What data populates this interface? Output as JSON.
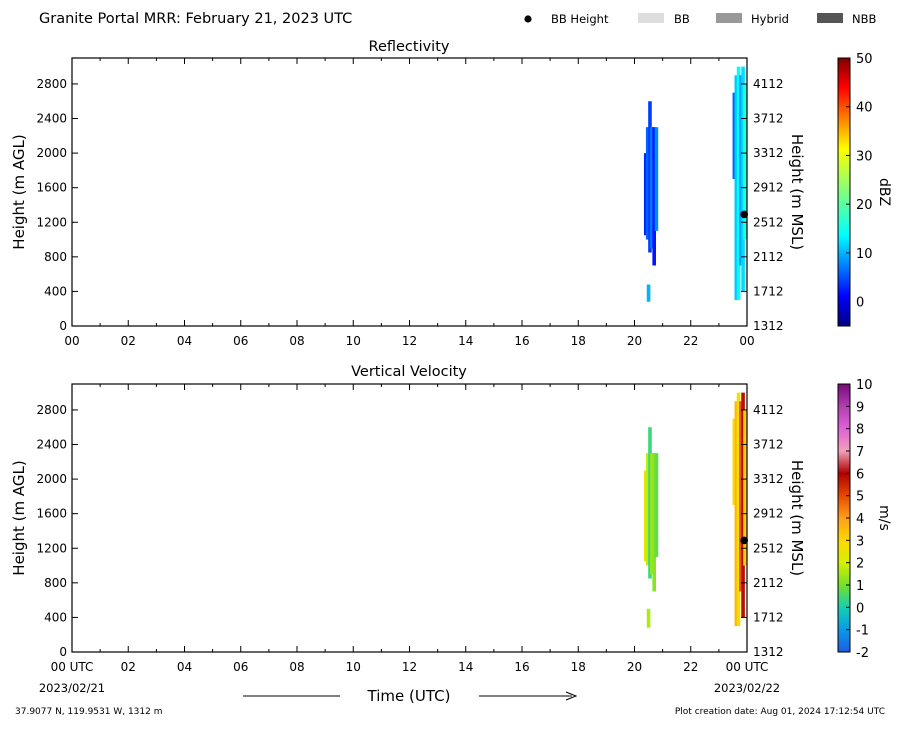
{
  "header": {
    "title": "Granite Portal MRR:  February 21, 2023 UTC",
    "legend": [
      {
        "label": "BB Height",
        "marker": "dot",
        "color": "#000000"
      },
      {
        "label": "BB",
        "marker": "rect",
        "color": "#dddddd"
      },
      {
        "label": "Hybrid",
        "marker": "rect",
        "color": "#999999"
      },
      {
        "label": "NBB",
        "marker": "rect",
        "color": "#555555"
      }
    ]
  },
  "footer": {
    "location": "37.9077 N, 119.9531 W, 1312 m",
    "created": "Plot creation date: Aug 01, 2024 17:12:54 UTC",
    "xlabel": "Time (UTC)",
    "start_date": "2023/02/21",
    "end_date": "2023/02/22"
  },
  "chart_data": [
    {
      "type": "heatmap",
      "title": "Reflectivity",
      "ylabel": "Height (m AGL)",
      "y2label": "Height (m MSL)",
      "x_ticks": [
        "00",
        "02",
        "04",
        "06",
        "08",
        "10",
        "12",
        "14",
        "16",
        "18",
        "20",
        "22",
        "00"
      ],
      "y_ticks": [
        0,
        400,
        800,
        1200,
        1600,
        2000,
        2400,
        2800
      ],
      "y2_ticks": [
        1312,
        1712,
        2112,
        2512,
        2912,
        3312,
        3712,
        4112
      ],
      "ylim": [
        0,
        3100
      ],
      "xlim_hours": [
        0,
        24
      ],
      "colorbar": {
        "label": "dBZ",
        "min": -5,
        "max": 50,
        "ticks": [
          0,
          10,
          20,
          30,
          40,
          50
        ]
      },
      "bb_height": [
        {
          "hour": 23.9,
          "height": 1290
        }
      ],
      "echo_columns": [
        {
          "hour": 20.4,
          "bottom": 1050,
          "top": 2000,
          "value": 3
        },
        {
          "hour": 20.47,
          "bottom": 1000,
          "top": 2300,
          "value": 6
        },
        {
          "hour": 20.5,
          "bottom": 280,
          "top": 480,
          "value": 10
        },
        {
          "hour": 20.55,
          "bottom": 850,
          "top": 2600,
          "value": 4
        },
        {
          "hour": 20.62,
          "bottom": 900,
          "top": 2300,
          "value": 7
        },
        {
          "hour": 20.7,
          "bottom": 700,
          "top": 2300,
          "value": 2
        },
        {
          "hour": 20.78,
          "bottom": 1100,
          "top": 2300,
          "value": 8
        },
        {
          "hour": 23.55,
          "bottom": 1700,
          "top": 2700,
          "value": 6
        },
        {
          "hour": 23.62,
          "bottom": 300,
          "top": 2900,
          "value": 11
        },
        {
          "hour": 23.7,
          "bottom": 300,
          "top": 3000,
          "value": 14
        },
        {
          "hour": 23.78,
          "bottom": 700,
          "top": 2900,
          "value": 9
        },
        {
          "hour": 23.86,
          "bottom": 400,
          "top": 3000,
          "value": 12
        },
        {
          "hour": 23.93,
          "bottom": 1000,
          "top": 2800,
          "value": 16
        }
      ]
    },
    {
      "type": "heatmap",
      "title": "Vertical Velocity",
      "ylabel": "Height (m AGL)",
      "y2label": "Height (m MSL)",
      "x_ticks": [
        "00 UTC",
        "02",
        "04",
        "06",
        "08",
        "10",
        "12",
        "14",
        "16",
        "18",
        "20",
        "22",
        "00 UTC"
      ],
      "y_ticks": [
        0,
        400,
        800,
        1200,
        1600,
        2000,
        2400,
        2800
      ],
      "y2_ticks": [
        1312,
        1712,
        2112,
        2512,
        2912,
        3312,
        3712,
        4112
      ],
      "ylim": [
        0,
        3100
      ],
      "xlim_hours": [
        0,
        24
      ],
      "colorbar": {
        "label": "m/s",
        "min": -2,
        "max": 10,
        "ticks": [
          -2,
          -1,
          0,
          1,
          2,
          3,
          4,
          5,
          6,
          7,
          8,
          9,
          10
        ]
      },
      "bb_height": [
        {
          "hour": 23.9,
          "height": 1290
        }
      ],
      "echo_columns": [
        {
          "hour": 20.4,
          "bottom": 1050,
          "top": 2100,
          "value": 2.6
        },
        {
          "hour": 20.47,
          "bottom": 1000,
          "top": 2300,
          "value": 1.8
        },
        {
          "hour": 20.5,
          "bottom": 280,
          "top": 500,
          "value": 1.6
        },
        {
          "hour": 20.55,
          "bottom": 850,
          "top": 2600,
          "value": 0.4
        },
        {
          "hour": 20.62,
          "bottom": 900,
          "top": 2300,
          "value": 1.4
        },
        {
          "hour": 20.7,
          "bottom": 700,
          "top": 2300,
          "value": 1.2
        },
        {
          "hour": 20.78,
          "bottom": 1100,
          "top": 2300,
          "value": 0.8
        },
        {
          "hour": 23.55,
          "bottom": 1700,
          "top": 2700,
          "value": 2.8
        },
        {
          "hour": 23.62,
          "bottom": 300,
          "top": 2900,
          "value": 3.6
        },
        {
          "hour": 23.7,
          "bottom": 300,
          "top": 3000,
          "value": 2.6
        },
        {
          "hour": 23.78,
          "bottom": 700,
          "top": 2900,
          "value": 4.8
        },
        {
          "hour": 23.86,
          "bottom": 400,
          "top": 3000,
          "value": 5.8
        },
        {
          "hour": 23.93,
          "bottom": 1000,
          "top": 2800,
          "value": 3.2
        }
      ]
    }
  ]
}
